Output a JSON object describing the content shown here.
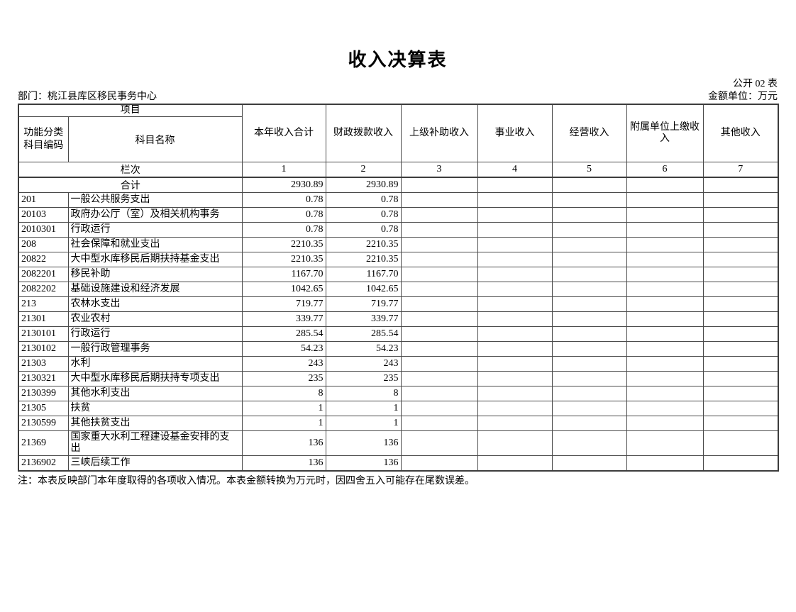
{
  "page": {
    "title": "收入决算表",
    "doc_label": "公开 02 表",
    "department": "部门：桃江县库区移民事务中心",
    "unit_label": "金额单位：万元",
    "note": "注：本表反映部门本年度取得的各项收入情况。本表金额转换为万元时，因四舍五入可能存在尾数误差。"
  },
  "table": {
    "header": {
      "project": "项目",
      "code": "功能分类\n科目编码",
      "subject": "科目名称",
      "columns": [
        "本年收入合计",
        "财政拨款收入",
        "上级补助收入",
        "事业收入",
        "经营收入",
        "附属单位上缴收入",
        "其他收入"
      ]
    },
    "colindex_row": {
      "label": "栏次",
      "indices": [
        "1",
        "2",
        "3",
        "4",
        "5",
        "6",
        "7"
      ]
    },
    "total_row": {
      "label": "合计",
      "values": [
        "2930.89",
        "2930.89",
        "",
        "",
        "",
        "",
        ""
      ]
    },
    "rows": [
      {
        "code": "201",
        "name": "一般公共服务支出",
        "values": [
          "0.78",
          "0.78",
          "",
          "",
          "",
          "",
          ""
        ]
      },
      {
        "code": "20103",
        "name": "政府办公厅（室）及相关机构事务",
        "values": [
          "0.78",
          "0.78",
          "",
          "",
          "",
          "",
          ""
        ]
      },
      {
        "code": "2010301",
        "name": "行政运行",
        "values": [
          "0.78",
          "0.78",
          "",
          "",
          "",
          "",
          ""
        ]
      },
      {
        "code": "208",
        "name": "社会保障和就业支出",
        "values": [
          "2210.35",
          "2210.35",
          "",
          "",
          "",
          "",
          ""
        ]
      },
      {
        "code": "20822",
        "name": "大中型水库移民后期扶持基金支出",
        "values": [
          "2210.35",
          "2210.35",
          "",
          "",
          "",
          "",
          ""
        ]
      },
      {
        "code": "2082201",
        "name": "移民补助",
        "values": [
          "1167.70",
          "1167.70",
          "",
          "",
          "",
          "",
          ""
        ]
      },
      {
        "code": "2082202",
        "name": "基础设施建设和经济发展",
        "values": [
          "1042.65",
          "1042.65",
          "",
          "",
          "",
          "",
          ""
        ]
      },
      {
        "code": "213",
        "name": "农林水支出",
        "values": [
          "719.77",
          "719.77",
          "",
          "",
          "",
          "",
          ""
        ]
      },
      {
        "code": "21301",
        "name": "农业农村",
        "values": [
          "339.77",
          "339.77",
          "",
          "",
          "",
          "",
          ""
        ]
      },
      {
        "code": "2130101",
        "name": "行政运行",
        "values": [
          "285.54",
          "285.54",
          "",
          "",
          "",
          "",
          ""
        ]
      },
      {
        "code": "2130102",
        "name": "一般行政管理事务",
        "values": [
          "54.23",
          "54.23",
          "",
          "",
          "",
          "",
          ""
        ]
      },
      {
        "code": "21303",
        "name": "水利",
        "values": [
          "243",
          "243",
          "",
          "",
          "",
          "",
          ""
        ]
      },
      {
        "code": "2130321",
        "name": "大中型水库移民后期扶持专项支出",
        "values": [
          "235",
          "235",
          "",
          "",
          "",
          "",
          ""
        ]
      },
      {
        "code": "2130399",
        "name": "其他水利支出",
        "values": [
          "8",
          "8",
          "",
          "",
          "",
          "",
          ""
        ]
      },
      {
        "code": "21305",
        "name": "扶贫",
        "values": [
          "1",
          "1",
          "",
          "",
          "",
          "",
          ""
        ]
      },
      {
        "code": "2130599",
        "name": "其他扶贫支出",
        "values": [
          "1",
          "1",
          "",
          "",
          "",
          "",
          ""
        ]
      },
      {
        "code": "21369",
        "name": "国家重大水利工程建设基金安排的支出",
        "values": [
          "136",
          "136",
          "",
          "",
          "",
          "",
          ""
        ]
      },
      {
        "code": "2136902",
        "name": "三峡后续工作",
        "values": [
          "136",
          "136",
          "",
          "",
          "",
          "",
          ""
        ]
      }
    ]
  }
}
